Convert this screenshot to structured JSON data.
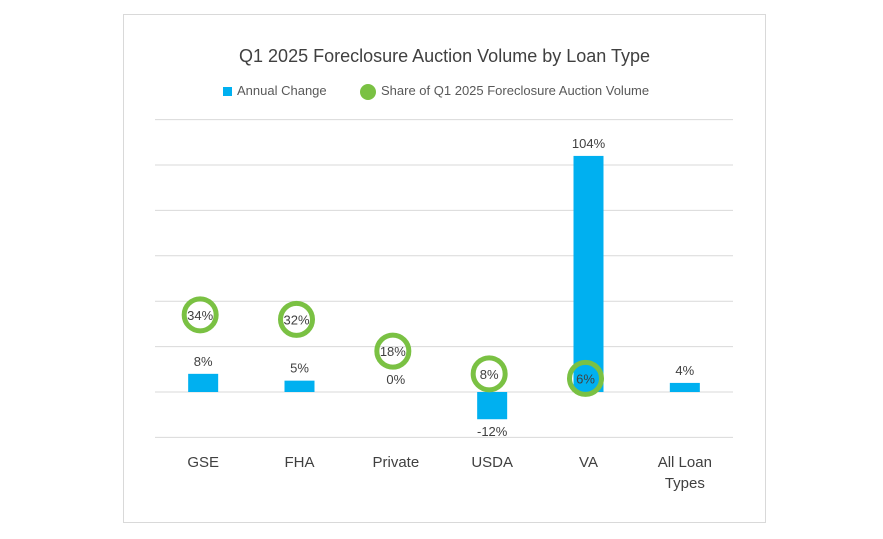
{
  "chart_data": {
    "type": "bar",
    "title": "Q1 2025 Foreclosure Auction Volume by Loan Type",
    "categories": [
      "GSE",
      "FHA",
      "Private",
      "USDA",
      "VA",
      "All Loan Types"
    ],
    "series": [
      {
        "name": "Annual Change",
        "kind": "bar",
        "color": "#00b0f0",
        "values": [
          8,
          5,
          0,
          -12,
          104,
          4
        ],
        "labels": [
          "8%",
          "5%",
          "0%",
          "-12%",
          "104%",
          "4%"
        ]
      },
      {
        "name": "Share of Q1 2025 Foreclosure Auction Volume",
        "kind": "marker",
        "color": "#7ac143",
        "values": [
          34,
          32,
          18,
          8,
          6,
          null
        ],
        "labels": [
          "34%",
          "32%",
          "18%",
          "8%",
          "6%",
          ""
        ]
      }
    ],
    "ylim": [
      -20,
      120
    ],
    "grid": true,
    "legend": "top"
  }
}
